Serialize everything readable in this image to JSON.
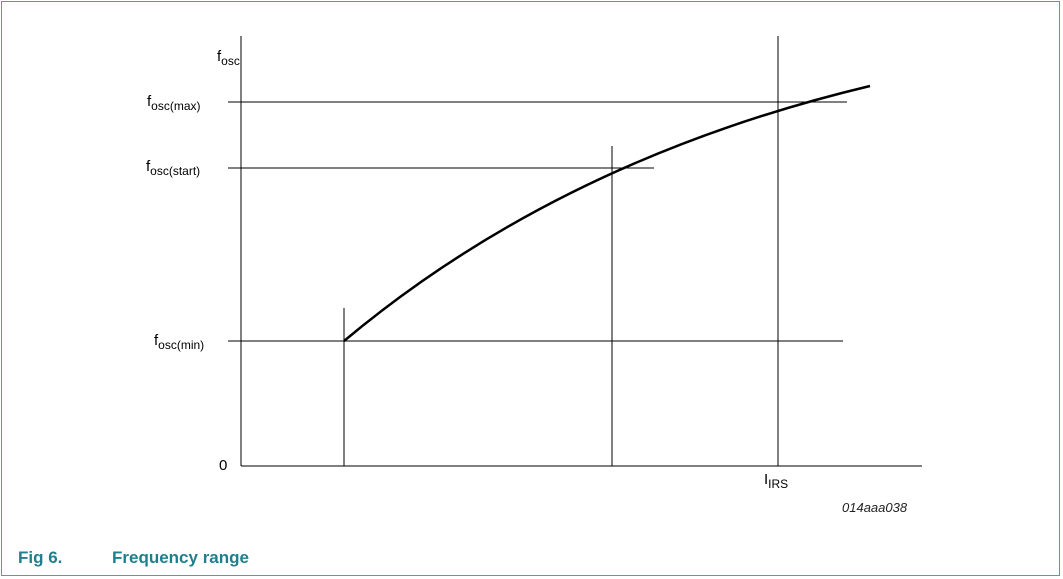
{
  "diagram": {
    "y_axis": {
      "symbol": "f",
      "subscript": "osc",
      "levels": {
        "max": {
          "symbol": "f",
          "subscript": "osc(max)"
        },
        "start": {
          "symbol": "f",
          "subscript": "osc(start)"
        },
        "min": {
          "symbol": "f",
          "subscript": "osc(min)"
        }
      },
      "origin": "0"
    },
    "x_axis": {
      "marker": {
        "symbol": "I",
        "subscript": "IRS"
      }
    },
    "drawing_id": "014aaa038",
    "colors": {
      "frame": "#5a9aa6",
      "caption": "#1f7f8c",
      "lines": "#000000"
    }
  },
  "caption": {
    "number": "Fig 6.",
    "title": "Frequency range"
  }
}
